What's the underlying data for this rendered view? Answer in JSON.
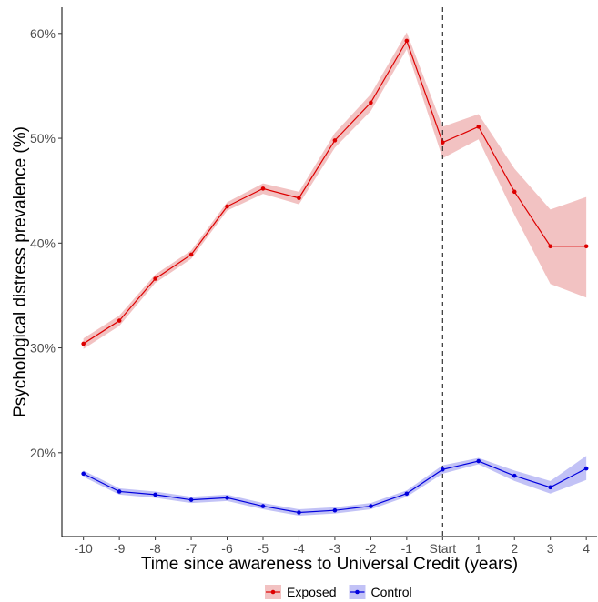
{
  "chart_data": {
    "type": "line",
    "title": "",
    "xlabel": "Time since awareness to Universal Credit (years)",
    "ylabel": "Psychological distress prevalence (%)",
    "x_tick_labels": [
      "-10",
      "-9",
      "-8",
      "-7",
      "-6",
      "-5",
      "-4",
      "-3",
      "-2",
      "-1",
      "Start",
      "1",
      "2",
      "3",
      "4"
    ],
    "x": [
      -10,
      -9,
      -8,
      -7,
      -6,
      -5,
      -4,
      -3,
      -2,
      -1,
      0,
      1,
      2,
      3,
      4
    ],
    "y_ticks": [
      20,
      30,
      40,
      50,
      60
    ],
    "y_tick_labels": [
      "20%",
      "30%",
      "40%",
      "50%",
      "60%"
    ],
    "xlim": [
      -10.6,
      4.3
    ],
    "ylim": [
      12.0,
      62.5
    ],
    "vline_x": 0,
    "grid": false,
    "legend_position": "bottom",
    "series": [
      {
        "name": "Exposed",
        "color": "#dd0000",
        "band_color": "#e89090",
        "values": [
          30.4,
          32.6,
          36.6,
          38.9,
          43.5,
          45.2,
          44.3,
          49.8,
          53.4,
          59.3,
          49.6,
          51.1,
          44.9,
          39.7,
          39.7
        ],
        "lower": [
          29.9,
          32.1,
          36.2,
          38.5,
          43.1,
          44.7,
          43.7,
          49.1,
          52.6,
          58.5,
          48.1,
          49.9,
          42.7,
          36.1,
          34.8
        ],
        "upper": [
          30.9,
          33.1,
          37.0,
          39.3,
          43.9,
          45.7,
          44.9,
          50.5,
          54.2,
          60.1,
          51.1,
          52.3,
          47.1,
          43.2,
          44.4
        ]
      },
      {
        "name": "Control",
        "color": "#0000dd",
        "band_color": "#9090ee",
        "values": [
          18.0,
          16.3,
          16.0,
          15.5,
          15.7,
          14.9,
          14.3,
          14.5,
          14.9,
          16.1,
          18.4,
          19.2,
          17.8,
          16.7,
          18.5
        ],
        "lower": [
          17.7,
          16.0,
          15.7,
          15.2,
          15.4,
          14.6,
          14.0,
          14.2,
          14.6,
          15.8,
          18.0,
          18.9,
          17.3,
          16.1,
          17.4
        ],
        "upper": [
          18.3,
          16.6,
          16.3,
          15.8,
          16.0,
          15.2,
          14.6,
          14.8,
          15.2,
          16.4,
          18.8,
          19.5,
          18.3,
          17.3,
          19.7
        ]
      }
    ]
  }
}
